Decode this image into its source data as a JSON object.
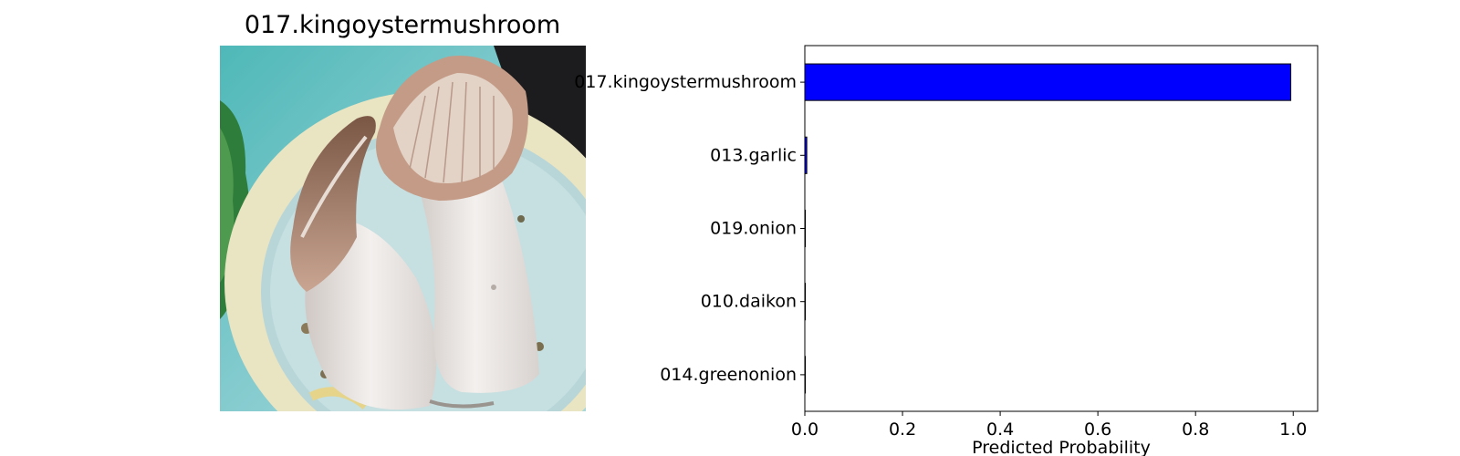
{
  "image_panel": {
    "title": "017.kingoystermushroom",
    "photo_subject": "king oyster mushroom on plate"
  },
  "chart_data": {
    "type": "bar",
    "orientation": "horizontal",
    "categories": [
      "017.kingoystermushroom",
      "013.garlic",
      "019.onion",
      "010.daikon",
      "014.greenonion"
    ],
    "values": [
      0.995,
      0.004,
      0.0005,
      0.0003,
      0.0002
    ],
    "xlabel": "Predicted Probability",
    "ylabel": "",
    "xlim": [
      0,
      1.05
    ],
    "xticks": [
      "0.0",
      "0.2",
      "0.4",
      "0.6",
      "0.8",
      "1.0"
    ],
    "xtick_values": [
      0,
      0.2,
      0.4,
      0.6,
      0.8,
      1.0
    ],
    "bar_color": "#0000ff",
    "edge_color": "#000000",
    "grid": false
  }
}
